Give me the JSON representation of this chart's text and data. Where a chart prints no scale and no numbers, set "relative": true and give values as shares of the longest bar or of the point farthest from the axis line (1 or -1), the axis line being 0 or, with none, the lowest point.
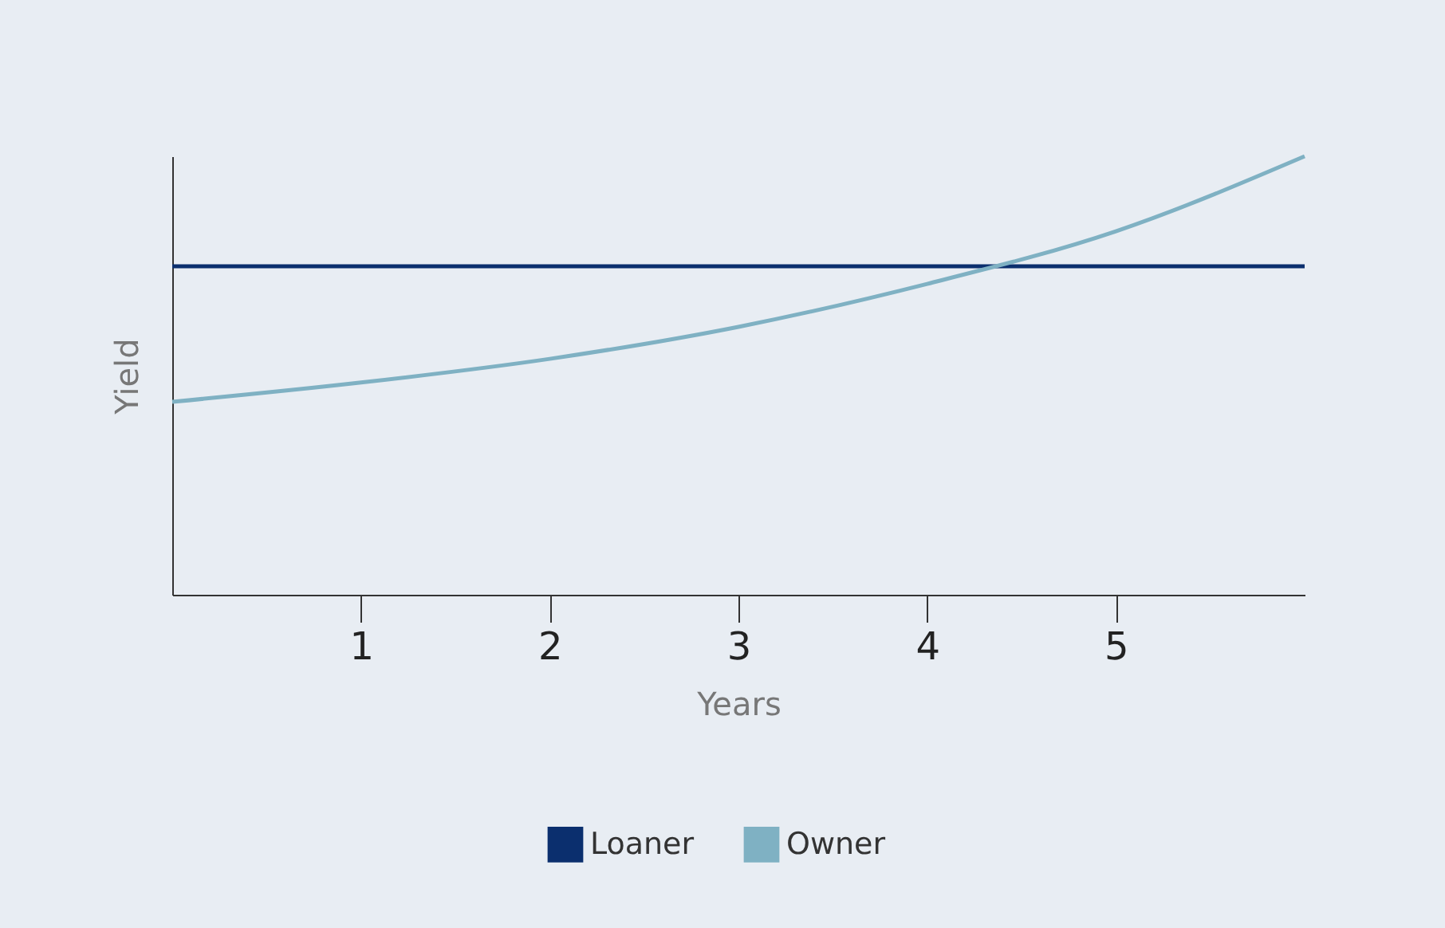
{
  "chart_data": {
    "type": "line",
    "relative": true,
    "xlabel": "Years",
    "ylabel": "Yield",
    "xlim": [
      0,
      6
    ],
    "xticks": [
      1,
      2,
      3,
      4,
      5
    ],
    "legend": "bottom",
    "grid": false,
    "tick_labels": "x",
    "series": [
      {
        "name": "Loaner",
        "color": "#0b2f6e",
        "x": [
          0,
          6
        ],
        "values": [
          0.749,
          0.749
        ]
      },
      {
        "name": "Owner",
        "color": "#7fb1c3",
        "x": [
          0,
          1,
          2,
          3,
          4,
          5,
          6
        ],
        "values": [
          0.44,
          0.484,
          0.538,
          0.611,
          0.709,
          0.829,
          1
        ]
      }
    ]
  }
}
